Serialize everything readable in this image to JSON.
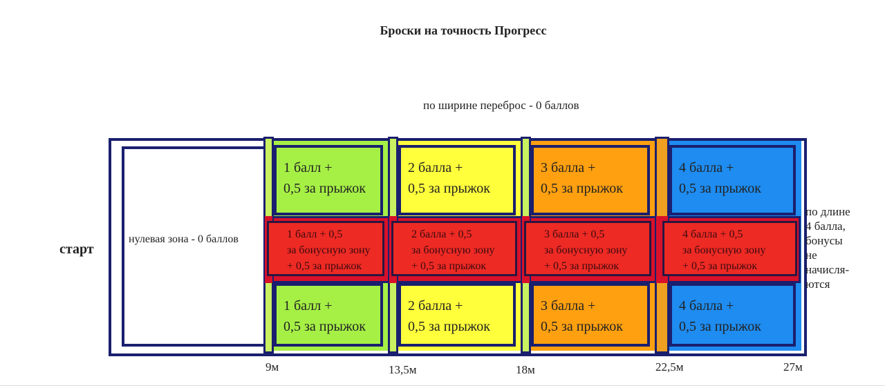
{
  "title": "Броски на точность Прогресс",
  "width_note": "по ширине переброс - 0 баллов",
  "start_label": "старт",
  "zero_zone": "нулевая зона - 0 баллов",
  "length_note": [
    "по длине",
    " 4 балла,",
    "бонусы",
    "не",
    "начисля-",
    "ются"
  ],
  "zones": [
    {
      "color": "#a6f046",
      "top": [
        "1 балл +",
        "0,5 за прыжок"
      ],
      "bonus": [
        "1 балл + 0,5",
        "за бонусную зону",
        "+ 0,5 за прыжок"
      ],
      "bottom": [
        "1 балл +",
        "0,5 за прыжок"
      ]
    },
    {
      "color": "#ffff3c",
      "top": [
        "2 балла +",
        "0,5 за прыжок"
      ],
      "bonus": [
        "2 балла + 0,5",
        "за бонусную зону",
        "+ 0,5 за прыжок"
      ],
      "bottom": [
        "2 балла +",
        "0,5 за прыжок"
      ]
    },
    {
      "color": "#ffa010",
      "top": [
        "3 балла +",
        "0,5 за прыжок"
      ],
      "bonus": [
        "3 балла + 0,5",
        "за бонусную зону",
        "+ 0,5 за прыжок"
      ],
      "bottom": [
        "3 балла +",
        "0,5 за прыжок"
      ]
    },
    {
      "color": "#1e8cf0",
      "top": [
        "4 балла +",
        "0,5 за прыжок"
      ],
      "bonus": [
        "4 балла + 0,5",
        "за бонусную зону",
        "+ 0,5 за прыжок"
      ],
      "bottom": [
        "4 балла +",
        "0,5 за прыжок"
      ]
    }
  ],
  "distance_marks": [
    "9м",
    "13,5м",
    "18м",
    "22,5м",
    "27м"
  ],
  "colors": {
    "border": "#1a1f6e",
    "bonus_band": "#d8102a",
    "divider_green": "#c8f060",
    "divider_orange": "#f0a020"
  }
}
